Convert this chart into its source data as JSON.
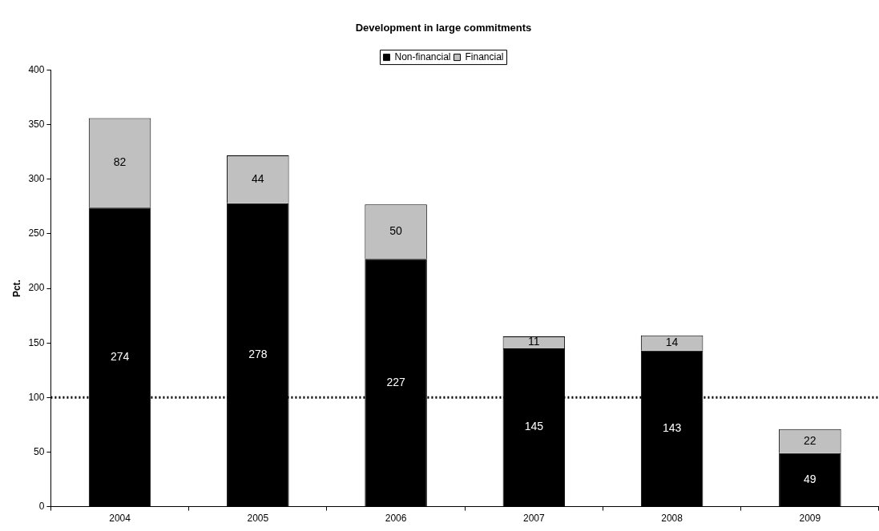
{
  "chart_data": {
    "type": "bar",
    "title": "Development in large commitments",
    "ylabel": "Pct.",
    "categories": [
      "2004",
      "2005",
      "2006",
      "2007",
      "2008",
      "2009"
    ],
    "series": [
      {
        "name": "Non-financial",
        "color": "#000000",
        "values": [
          274,
          278,
          227,
          145,
          143,
          49
        ]
      },
      {
        "name": "Financial",
        "color": "#c0c0c0",
        "values": [
          82,
          44,
          50,
          11,
          14,
          22
        ]
      }
    ],
    "stacked": true,
    "data_labels": true,
    "ylim": [
      0,
      400
    ],
    "yticks": [
      0,
      50,
      100,
      150,
      200,
      250,
      300,
      350,
      400
    ],
    "ref_lines": [
      {
        "axis": "y",
        "value": 100,
        "color": "#000000",
        "line_style": "dotted"
      }
    ],
    "grid": false,
    "legend": "top"
  }
}
